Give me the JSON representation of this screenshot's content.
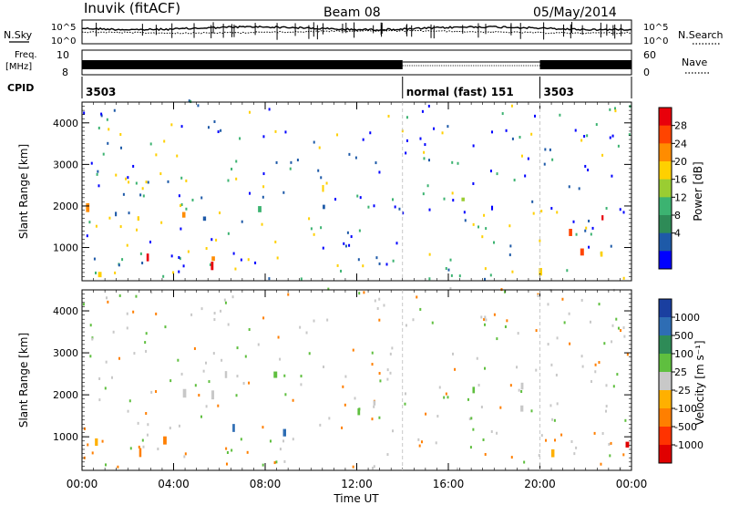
{
  "header": {
    "station": "Inuvik (fitACF)",
    "beam": "Beam 08",
    "date": "05/May/2014"
  },
  "top_panels": {
    "nsky_label": "N.Sky",
    "nsearch_label": "N.Search",
    "noise_ticks": [
      "10^5",
      "10^0"
    ],
    "freq_label": "Freq.",
    "freq_unit": "[MHz]",
    "freq_ticks": [
      "10",
      "8"
    ],
    "nave_label": "Nave",
    "nave_ticks": [
      "60",
      "0"
    ],
    "cpid_label": "CPID"
  },
  "cpid_segments": [
    {
      "label": "3503",
      "start_hour": 0,
      "end_hour": 14
    },
    {
      "label": "normal (fast) 151",
      "start_hour": 14,
      "end_hour": 20
    },
    {
      "label": "3503",
      "start_hour": 20,
      "end_hour": 24
    }
  ],
  "chart_data": [
    {
      "type": "heatmap",
      "panel": "power",
      "ylabel": "Slant Range [km]",
      "xlim": [
        0,
        24
      ],
      "ylim": [
        200,
        4500
      ],
      "yticks": [
        "1000",
        "2000",
        "3000",
        "4000"
      ],
      "colorbar": {
        "label": "Power [dB]",
        "ticks": [
          "28",
          "24",
          "20",
          "16",
          "12",
          "8",
          "4"
        ],
        "colors": [
          "#e8000b",
          "#ff4400",
          "#ff8c00",
          "#ffd000",
          "#9acd32",
          "#3cb371",
          "#2e8b57",
          "#1e5aa8",
          "#0000ff"
        ]
      },
      "regions": [
        {
          "x": [
            0,
            6.5
          ],
          "y": [
            300,
            1500
          ],
          "level": "high"
        },
        {
          "x": [
            0,
            14
          ],
          "y": [
            1500,
            2500
          ],
          "level": "medium"
        },
        {
          "x": [
            14,
            18
          ],
          "y": [
            1200,
            2200
          ],
          "level": "low"
        },
        {
          "x": [
            16,
            20
          ],
          "y": [
            250,
            600
          ],
          "level": "high"
        },
        {
          "x": [
            20,
            24
          ],
          "y": [
            600,
            2200
          ],
          "level": "high"
        }
      ]
    },
    {
      "type": "heatmap",
      "panel": "velocity",
      "ylabel": "Slant Range [km]",
      "xlabel": "Time UT",
      "xlim": [
        0,
        24
      ],
      "ylim": [
        200,
        4500
      ],
      "xticks": [
        "00:00",
        "04:00",
        "08:00",
        "12:00",
        "16:00",
        "20:00",
        "00:00"
      ],
      "yticks": [
        "1000",
        "2000",
        "3000",
        "4000"
      ],
      "colorbar": {
        "label": "Velocity [m s⁻¹]",
        "ticks": [
          "1000",
          "500",
          "100",
          "25",
          "-25",
          "-100",
          "-500",
          "-1000"
        ],
        "colors": [
          "#1a3fa0",
          "#2e6db4",
          "#2e8b57",
          "#5fbf3f",
          "#c8c8c8",
          "#ffb000",
          "#ff7f00",
          "#ff3300",
          "#e00000"
        ]
      },
      "regions": [
        {
          "x": [
            0,
            5
          ],
          "y": [
            400,
            1300
          ],
          "level": "negative"
        },
        {
          "x": [
            3,
            14
          ],
          "y": [
            1500,
            2500
          ],
          "level": "near-zero"
        },
        {
          "x": [
            4,
            9
          ],
          "y": [
            400,
            1200
          ],
          "level": "positive"
        },
        {
          "x": [
            14,
            20
          ],
          "y": [
            1300,
            2300
          ],
          "level": "near-zero"
        },
        {
          "x": [
            20,
            24
          ],
          "y": [
            500,
            1500
          ],
          "level": "negative"
        }
      ]
    }
  ]
}
